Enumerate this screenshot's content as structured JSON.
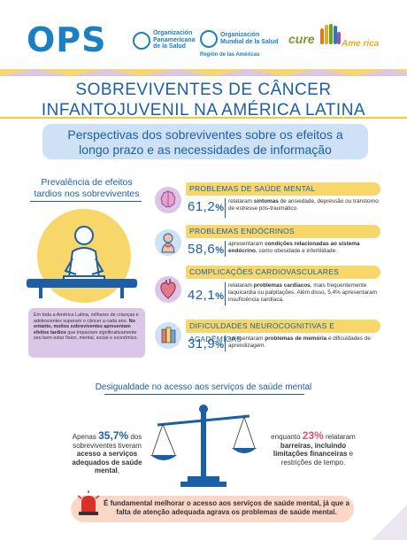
{
  "header": {
    "ops_logo": "OPS",
    "org1_line1": "Organización",
    "org1_line2": "Panamericana",
    "org1_line3": "de la Salud",
    "org2_line1": "Organización",
    "org2_line2": "Mundial de la Salud",
    "org2_sub": "Región de las Américas",
    "cure_prefix": "cure",
    "cure_suffix": "Ame rica"
  },
  "title": {
    "line1": "SOBREVIVENTES DE CÂNCER",
    "line2": "INFANTOJUVENIL NA AMÉRICA LATINA"
  },
  "subtitle": {
    "line1": "Perspectivas dos sobreviventes sobre os efeitos a",
    "line2": "longo prazo e as necessidades de informação"
  },
  "prevalence": {
    "line1": "Prevalência de efeitos",
    "line2": "tardios nos sobreviventes"
  },
  "left_box": {
    "part1": "Em toda a América Latina, milhares de crianças e adolescentes superam o câncer a cada ano. ",
    "bold": "No entanto, muitos sobreviventes apresentam efeitos tardios",
    "part2": " que impactam significativamente seu bem-estar físico, mental, social e econômico."
  },
  "effects": [
    {
      "title": "PROBLEMAS DE SAÚDE MENTAL",
      "pct": "61,2",
      "desc_a": "relataram ",
      "desc_b": "sintomas",
      "desc_c": " de ansiedade, depressão ou transtorno de estresse pós-traumático."
    },
    {
      "title": "PROBLEMAS ENDÓCRINOS",
      "pct": "58,6",
      "desc_a": "apresentaram ",
      "desc_b": "condições relacionadas ao sistema endócrino",
      "desc_c": ", como obesidade e infertilidade."
    },
    {
      "title": "COMPLICAÇÕES CARDIOVASCULARES",
      "pct": "42,1",
      "desc_a": "relataram ",
      "desc_b": "problemas cardíacos",
      "desc_c": ", mais frequentemente taquicardia ou palpitações. Além disso, 5,4% apresentaram insuficiência cardíaca."
    },
    {
      "title": "DIFICULDADES NEUROCOGNITIVAS E ACADÊMICAS",
      "pct": "31,9",
      "desc_a": "apresentaram ",
      "desc_b": "problemas de memória",
      "desc_c": " e dificuldades de aprendizagem."
    }
  ],
  "pct_sign": "%",
  "inequality": {
    "title": "Desigualdade no acesso aos serviços de saúde mental",
    "left_a": "Apenas ",
    "left_num": "35,7%",
    "left_b": " dos sobreviventes tiveram ",
    "left_bold": "acesso a serviços adequados de saúde mental",
    "left_c": ",",
    "right_a": "enquanto ",
    "right_num": "23%",
    "right_b": " relataram ",
    "right_bold": "barreiras, incluindo limitações financeiras",
    "right_c": " e restrições de tempo."
  },
  "bottom": {
    "text": "É fundamental melhorar o acesso aos serviços de saúde mental, já que a falta de atenção adequada agrava os problemas de saúde mental."
  },
  "colors": {
    "blue": "#1b5fa8",
    "yellow": "#f7d76a",
    "lilac": "#dcc6e8",
    "peach": "#fbd7c8",
    "light_blue": "#cfe2f5"
  }
}
